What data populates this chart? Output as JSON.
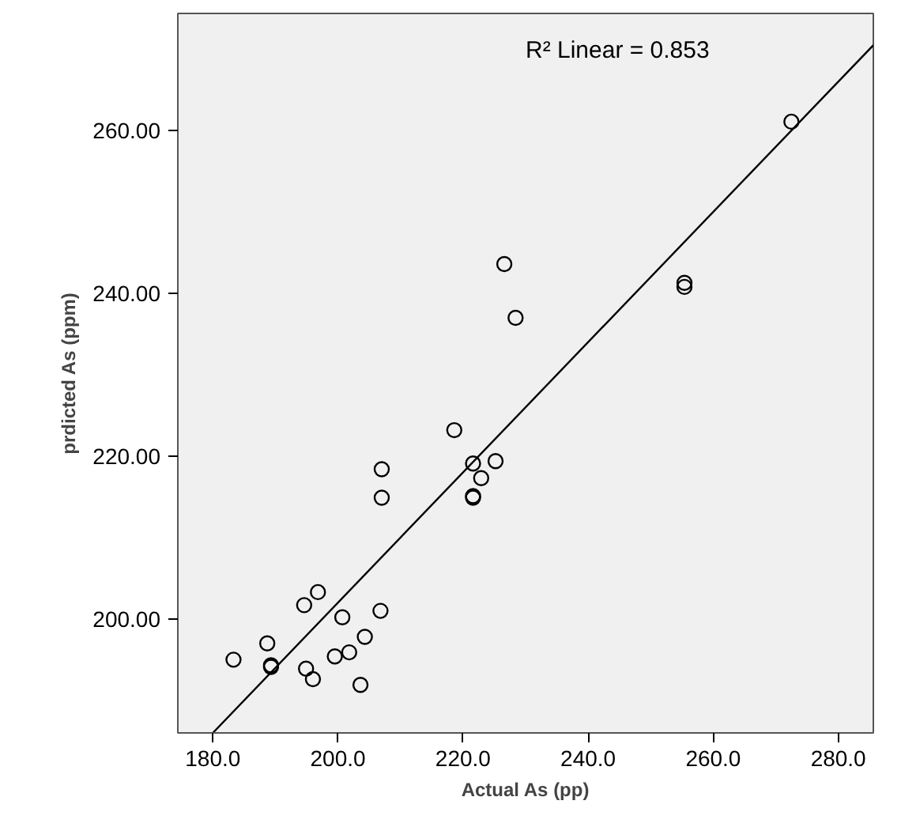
{
  "chart_data": {
    "type": "scatter",
    "xlabel": "Actual As (pp)",
    "ylabel": "prdicted As (ppm)",
    "xlim": [
      174.4,
      285.6
    ],
    "ylim": [
      186.0,
      274.4
    ],
    "xticks": [
      {
        "value": 180,
        "label": "180.0"
      },
      {
        "value": 200,
        "label": "200.0"
      },
      {
        "value": 220,
        "label": "220.0"
      },
      {
        "value": 240,
        "label": "240.0"
      },
      {
        "value": 260,
        "label": "260.0"
      },
      {
        "value": 280,
        "label": "280.0"
      }
    ],
    "yticks": [
      {
        "value": 200,
        "label": "200.00"
      },
      {
        "value": 220,
        "label": "220.00"
      },
      {
        "value": 240,
        "label": "240.00"
      },
      {
        "value": 260,
        "label": "260.00"
      }
    ],
    "grid": false,
    "marker": "circle",
    "annotations": [
      "R² Linear = 0.853"
    ],
    "series": [
      {
        "color": "#000000",
        "x": [
          183.3,
          188.7,
          189.3,
          189.3,
          194.6,
          196.8,
          194.9,
          196.0,
          200.7,
          199.5,
          201.8,
          204.3,
          203.6,
          206.8,
          207.0,
          207.0,
          221.6,
          225.2,
          222.9,
          221.6,
          221.6,
          218.6,
          226.6,
          228.4,
          255.4,
          255.4,
          272.5
        ],
        "values": [
          195.0,
          197.0,
          194.3,
          194.1,
          201.7,
          203.3,
          193.9,
          192.6,
          200.2,
          195.4,
          195.9,
          197.8,
          191.9,
          201.0,
          218.4,
          214.9,
          219.1,
          219.4,
          217.3,
          215.1,
          214.9,
          223.2,
          243.6,
          237.0,
          241.3,
          240.8,
          261.1
        ]
      },
      {
        "type": "line",
        "color": "#000000",
        "line_style": "solid",
        "marker": "none",
        "x": [
          180.0,
          285.6
        ],
        "values": [
          186.0,
          270.5
        ]
      }
    ]
  }
}
